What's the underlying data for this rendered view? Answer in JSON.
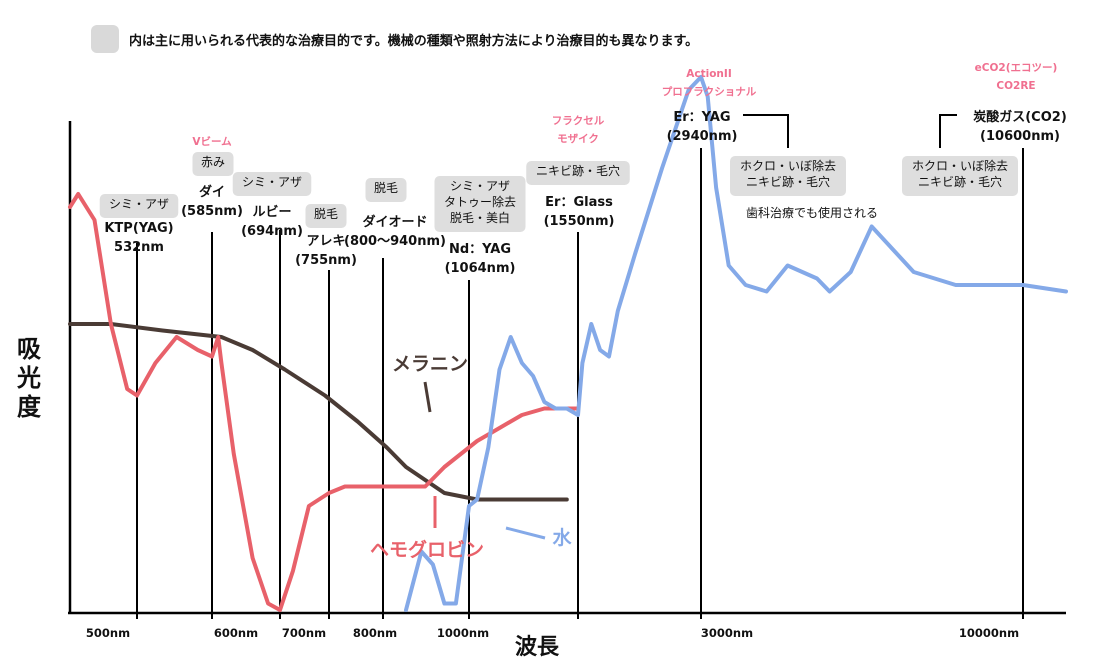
{
  "chart_data": {
    "type": "line",
    "note": "内は主に用いられる代表的な治療目的です。機械の種類や照射方法により治療目的も異なります。",
    "xlabel": "波長",
    "ylabel": "吸光度",
    "x_ticks": [
      "500nm",
      "600nm",
      "700nm",
      "800nm",
      "1000nm",
      "3000nm",
      "10000nm"
    ],
    "series": [
      {
        "name": "メラニン",
        "color": "#4a3b35",
        "x": [
          450,
          500,
          550,
          600,
          650,
          700,
          750,
          800,
          850,
          900,
          950,
          1000,
          1100,
          1200,
          1300,
          1400,
          1500
        ],
        "y": [
          0.44,
          0.44,
          0.43,
          0.42,
          0.4,
          0.37,
          0.33,
          0.29,
          0.25,
          0.22,
          0.2,
          0.18,
          0.17,
          0.17,
          0.17,
          0.17,
          0.17
        ]
      },
      {
        "name": "ヘモグロビン",
        "color": "#e8616a",
        "x": [
          450,
          460,
          480,
          500,
          520,
          532,
          545,
          560,
          575,
          585,
          595,
          600,
          620,
          650,
          675,
          694,
          710,
          730,
          755,
          780,
          800,
          850,
          900,
          950,
          1000,
          1100,
          1200,
          1300,
          1400,
          1500,
          1550
        ],
        "y": [
          0.62,
          0.64,
          0.6,
          0.44,
          0.34,
          0.33,
          0.38,
          0.42,
          0.4,
          0.39,
          0.42,
          0.38,
          0.24,
          0.08,
          0.01,
          0.0,
          0.06,
          0.16,
          0.18,
          0.19,
          0.19,
          0.19,
          0.19,
          0.19,
          0.22,
          0.26,
          0.28,
          0.3,
          0.31,
          0.31,
          0.31
        ]
      },
      {
        "name": "水",
        "color": "#84a9e8",
        "x": [
          900,
          940,
          970,
          1000,
          1030,
          1064,
          1100,
          1150,
          1200,
          1250,
          1300,
          1350,
          1400,
          1450,
          1500,
          1550,
          1600,
          1700,
          1800,
          1900,
          2000,
          2200,
          2500,
          2800,
          2940,
          3100,
          3300,
          3600,
          4000,
          4500,
          5000,
          5700,
          6000,
          6500,
          7000,
          8000,
          9000,
          10000,
          10600,
          12000
        ],
        "y": [
          0.0,
          0.09,
          0.07,
          0.01,
          0.01,
          0.16,
          0.17,
          0.25,
          0.37,
          0.42,
          0.38,
          0.36,
          0.32,
          0.31,
          0.31,
          0.3,
          0.38,
          0.44,
          0.4,
          0.39,
          0.46,
          0.55,
          0.68,
          0.8,
          0.82,
          0.79,
          0.65,
          0.53,
          0.5,
          0.49,
          0.53,
          0.51,
          0.49,
          0.52,
          0.59,
          0.52,
          0.5,
          0.5,
          0.5,
          0.49
        ]
      }
    ],
    "laser_lines": [
      {
        "wavelength": 532,
        "name": "KTP(YAG)\n532nm",
        "purposes": [
          "シミ・アザ"
        ]
      },
      {
        "wavelength": 585,
        "name": "ダイ\n(585nm)",
        "purposes": [
          "赤み"
        ],
        "tag": "Vビーム"
      },
      {
        "wavelength": 694,
        "name": "ルビー\n(694nm)",
        "purposes": [
          "シミ・アザ"
        ]
      },
      {
        "wavelength": 755,
        "name": "アレキ\n(755nm)",
        "purposes": [
          "脱毛"
        ]
      },
      {
        "wavelength": 840,
        "name": "ダイオード\n(800～940nm)",
        "purposes": [
          "脱毛"
        ]
      },
      {
        "wavelength": 1064,
        "name": "Nd：YAG\n(1064nm)",
        "purposes": [
          "シミ・アザ",
          "タトゥー除去",
          "脱毛・美白"
        ]
      },
      {
        "wavelength": 1550,
        "name": "Er：Glass\n(1550nm)",
        "purposes": [
          "ニキビ跡・毛穴"
        ],
        "tag": "フラクセル\nモザイク"
      },
      {
        "wavelength": 2940,
        "name": "Er：YAG\n(2940nm)",
        "purposes": [
          "ホクロ・いぼ除去",
          "ニキビ跡・毛穴"
        ],
        "tag": "ActionII\nプロフラクショナル",
        "note": "歯科治療でも使用される"
      },
      {
        "wavelength": 10600,
        "name": "炭酸ガス(CO2)\n(10600nm)",
        "purposes": [
          "ホクロ・いぼ除去",
          "ニキビ跡・毛穴"
        ],
        "tag": "eCO2(エコツー)\nCO2RE"
      }
    ],
    "grid": false,
    "legend": "inline labels"
  }
}
